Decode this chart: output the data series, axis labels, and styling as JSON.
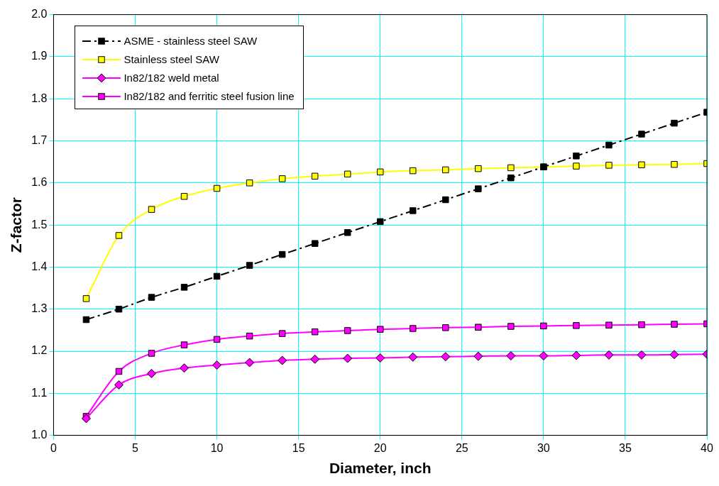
{
  "chart_data": {
    "type": "line",
    "xlabel": "Diameter, inch",
    "ylabel": "Z-factor",
    "x": [
      2,
      4,
      6,
      8,
      10,
      12,
      14,
      16,
      18,
      20,
      22,
      24,
      26,
      28,
      30,
      32,
      34,
      36,
      38,
      40
    ],
    "series": [
      {
        "name": "ASME - stainless steel SAW",
        "color": "#000000",
        "marker": "square",
        "line_style": "dashed",
        "values": [
          1.275,
          1.3,
          1.328,
          1.352,
          1.378,
          1.404,
          1.43,
          1.456,
          1.482,
          1.508,
          1.534,
          1.56,
          1.586,
          1.612,
          1.638,
          1.664,
          1.69,
          1.716,
          1.742,
          1.768
        ]
      },
      {
        "name": "Stainless steel SAW",
        "color": "#ffff00",
        "marker": "square",
        "line_style": "solid",
        "values": [
          1.325,
          1.475,
          1.537,
          1.568,
          1.587,
          1.6,
          1.61,
          1.616,
          1.621,
          1.626,
          1.629,
          1.631,
          1.634,
          1.636,
          1.638,
          1.64,
          1.642,
          1.643,
          1.644,
          1.646
        ]
      },
      {
        "name": "In82/182 weld metal",
        "color": "#ff00ff",
        "marker": "diamond",
        "line_style": "solid",
        "values": [
          1.04,
          1.12,
          1.147,
          1.16,
          1.167,
          1.173,
          1.178,
          1.181,
          1.183,
          1.184,
          1.186,
          1.187,
          1.188,
          1.189,
          1.189,
          1.19,
          1.191,
          1.191,
          1.192,
          1.193
        ]
      },
      {
        "name": "In82/182 and ferritic steel fusion line",
        "color": "#ff00ff",
        "marker": "square",
        "line_style": "solid",
        "values": [
          1.045,
          1.152,
          1.195,
          1.215,
          1.228,
          1.236,
          1.242,
          1.246,
          1.249,
          1.252,
          1.254,
          1.256,
          1.257,
          1.259,
          1.26,
          1.261,
          1.262,
          1.263,
          1.264,
          1.265
        ]
      }
    ],
    "xlim": [
      0,
      40
    ],
    "xticks": [
      0,
      5,
      10,
      15,
      20,
      25,
      30,
      35,
      40
    ],
    "ylim": [
      1,
      2
    ],
    "yticks": [
      {
        "value": 1,
        "label": "1.0"
      },
      1.1,
      1.2,
      1.3,
      1.4,
      1.5,
      1.6,
      1.7,
      1.8,
      1.9,
      {
        "value": 2,
        "label": "2.0"
      }
    ],
    "grid": true,
    "legend": "top left"
  }
}
